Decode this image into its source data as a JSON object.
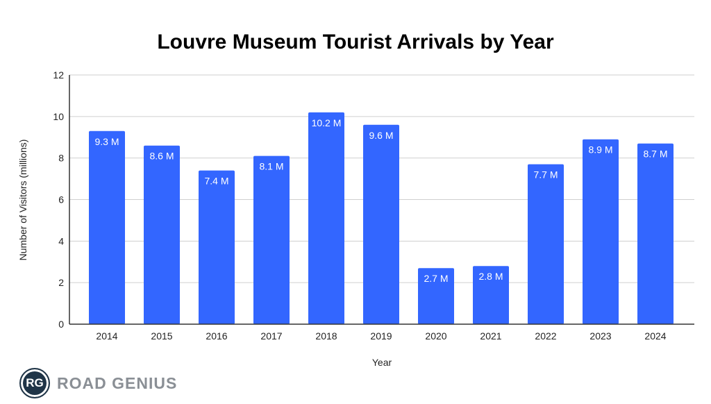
{
  "chart_data": {
    "type": "bar",
    "title": "Louvre Museum Tourist Arrivals by Year",
    "xlabel": "Year",
    "ylabel": "Number of Visitors (millions)",
    "categories": [
      "2014",
      "2015",
      "2016",
      "2017",
      "2018",
      "2019",
      "2020",
      "2021",
      "2022",
      "2023",
      "2024"
    ],
    "values": [
      9.3,
      8.6,
      7.4,
      8.1,
      10.2,
      9.6,
      2.7,
      2.8,
      7.7,
      8.9,
      8.7
    ],
    "data_labels": [
      "9.3 M",
      "8.6 M",
      "7.4 M",
      "8.1 M",
      "10.2 M",
      "9.6 M",
      "2.7 M",
      "2.8 M",
      "7.7 M",
      "8.9 M",
      "8.7 M"
    ],
    "ylim": [
      0,
      12
    ],
    "yticks": [
      0,
      2,
      4,
      6,
      8,
      10,
      12
    ],
    "grid": true,
    "bar_color": "#3366ff"
  },
  "logo": {
    "badge": "RG",
    "text": "ROAD GENIUS"
  }
}
